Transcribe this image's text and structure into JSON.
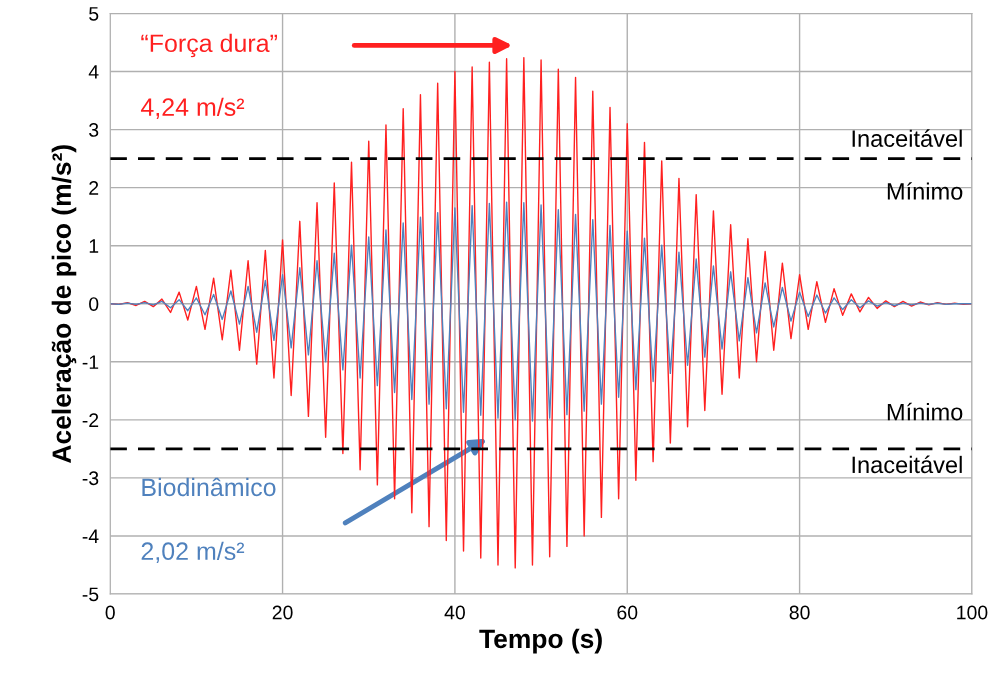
{
  "chart_data": {
    "type": "line",
    "xlabel": "Tempo (s)",
    "ylabel": "Aceleração de pico (m/s²)",
    "xlim": [
      0,
      100
    ],
    "xticks": [
      0,
      20,
      40,
      60,
      80,
      100
    ],
    "ylim": [
      -5,
      5
    ],
    "yticks": [
      -5,
      -4,
      -3,
      -2,
      -1,
      0,
      1,
      2,
      3,
      4,
      5
    ],
    "grid": true,
    "line_style": "solid",
    "marker": "none",
    "x": [
      0,
      1,
      2,
      3,
      4,
      5,
      6,
      7,
      8,
      9,
      10,
      11,
      12,
      13,
      14,
      15,
      16,
      17,
      18,
      19,
      20,
      21,
      22,
      23,
      24,
      25,
      26,
      27,
      28,
      29,
      30,
      31,
      32,
      33,
      34,
      35,
      36,
      37,
      38,
      39,
      40,
      41,
      42,
      43,
      44,
      45,
      46,
      47,
      48,
      49,
      50,
      51,
      52,
      53,
      54,
      55,
      56,
      57,
      58,
      59,
      60,
      61,
      62,
      63,
      64,
      65,
      66,
      67,
      68,
      69,
      70,
      71,
      72,
      73,
      74,
      75,
      76,
      77,
      78,
      79,
      80,
      81,
      82,
      83,
      84,
      85,
      86,
      87,
      88,
      89,
      90,
      91,
      92,
      93,
      94,
      95,
      96,
      97,
      98,
      99,
      100
    ],
    "series": [
      {
        "color": "#ff2020",
        "values": [
          0,
          -0.01,
          0.02,
          -0.03,
          0.04,
          -0.05,
          0.08,
          -0.15,
          0.2,
          -0.28,
          0.3,
          -0.44,
          0.44,
          -0.62,
          0.58,
          -0.8,
          0.74,
          -1.04,
          0.92,
          -1.28,
          1.1,
          -1.58,
          1.42,
          -1.94,
          1.74,
          -2.3,
          2.08,
          -2.58,
          2.44,
          -2.86,
          2.8,
          -3.12,
          3.08,
          -3.36,
          3.36,
          -3.6,
          3.6,
          -3.84,
          3.8,
          -4.08,
          4.0,
          -4.26,
          4.08,
          -4.38,
          4.16,
          -4.5,
          4.22,
          -4.55,
          4.24,
          -4.5,
          4.2,
          -4.36,
          4.04,
          -4.18,
          3.9,
          -4.0,
          3.66,
          -3.68,
          3.38,
          -3.36,
          3.1,
          -3.04,
          2.78,
          -2.72,
          2.46,
          -2.4,
          2.16,
          -2.12,
          1.88,
          -1.84,
          1.6,
          -1.56,
          1.36,
          -1.28,
          1.12,
          -1.0,
          0.9,
          -0.8,
          0.7,
          -0.6,
          0.5,
          -0.44,
          0.38,
          -0.32,
          0.26,
          -0.2,
          0.17,
          -0.14,
          0.11,
          -0.08,
          0.05,
          -0.05,
          0.04,
          -0.04,
          0.03,
          -0.02,
          0.02,
          -0.01,
          0.01,
          -0.01,
          0
        ]
      },
      {
        "color": "#4f81bd",
        "values": [
          0,
          -0.01,
          0.01,
          -0.01,
          0.02,
          -0.02,
          0.04,
          -0.07,
          0.07,
          -0.12,
          0.1,
          -0.19,
          0.16,
          -0.27,
          0.22,
          -0.35,
          0.3,
          -0.49,
          0.4,
          -0.63,
          0.5,
          -0.76,
          0.62,
          -0.88,
          0.74,
          -1.0,
          0.87,
          -1.14,
          1.01,
          -1.28,
          1.15,
          -1.41,
          1.27,
          -1.53,
          1.39,
          -1.65,
          1.49,
          -1.73,
          1.57,
          -1.81,
          1.65,
          -1.87,
          1.69,
          -1.92,
          1.73,
          -1.97,
          1.75,
          -2.0,
          1.74,
          -2.02,
          1.7,
          -1.97,
          1.62,
          -1.91,
          1.54,
          -1.85,
          1.45,
          -1.73,
          1.35,
          -1.61,
          1.25,
          -1.48,
          1.13,
          -1.34,
          1.01,
          -1.2,
          0.89,
          -1.06,
          0.77,
          -0.92,
          0.65,
          -0.78,
          0.55,
          -0.64,
          0.45,
          -0.5,
          0.36,
          -0.4,
          0.28,
          -0.3,
          0.2,
          -0.22,
          0.15,
          -0.16,
          0.1,
          -0.1,
          0.07,
          -0.07,
          0.05,
          -0.04,
          0.02,
          -0.03,
          0.01,
          -0.02,
          0.01,
          -0.01,
          0.01,
          -0.01,
          0,
          0,
          0
        ]
      }
    ],
    "ref_lines": [
      {
        "axis": "y",
        "value": 2.5,
        "label": "Inaceitável",
        "color": "#000000",
        "line_style": "dashed"
      },
      {
        "axis": "y",
        "value": -2.5,
        "label": "Inaceitável",
        "color": "#000000",
        "line_style": "dashed"
      }
    ],
    "annotations": [
      "“Força dura”",
      "4,24 m/s²",
      "Biodinâmico",
      "2,02 m/s²",
      "Mínimo",
      "Mínimo"
    ]
  }
}
